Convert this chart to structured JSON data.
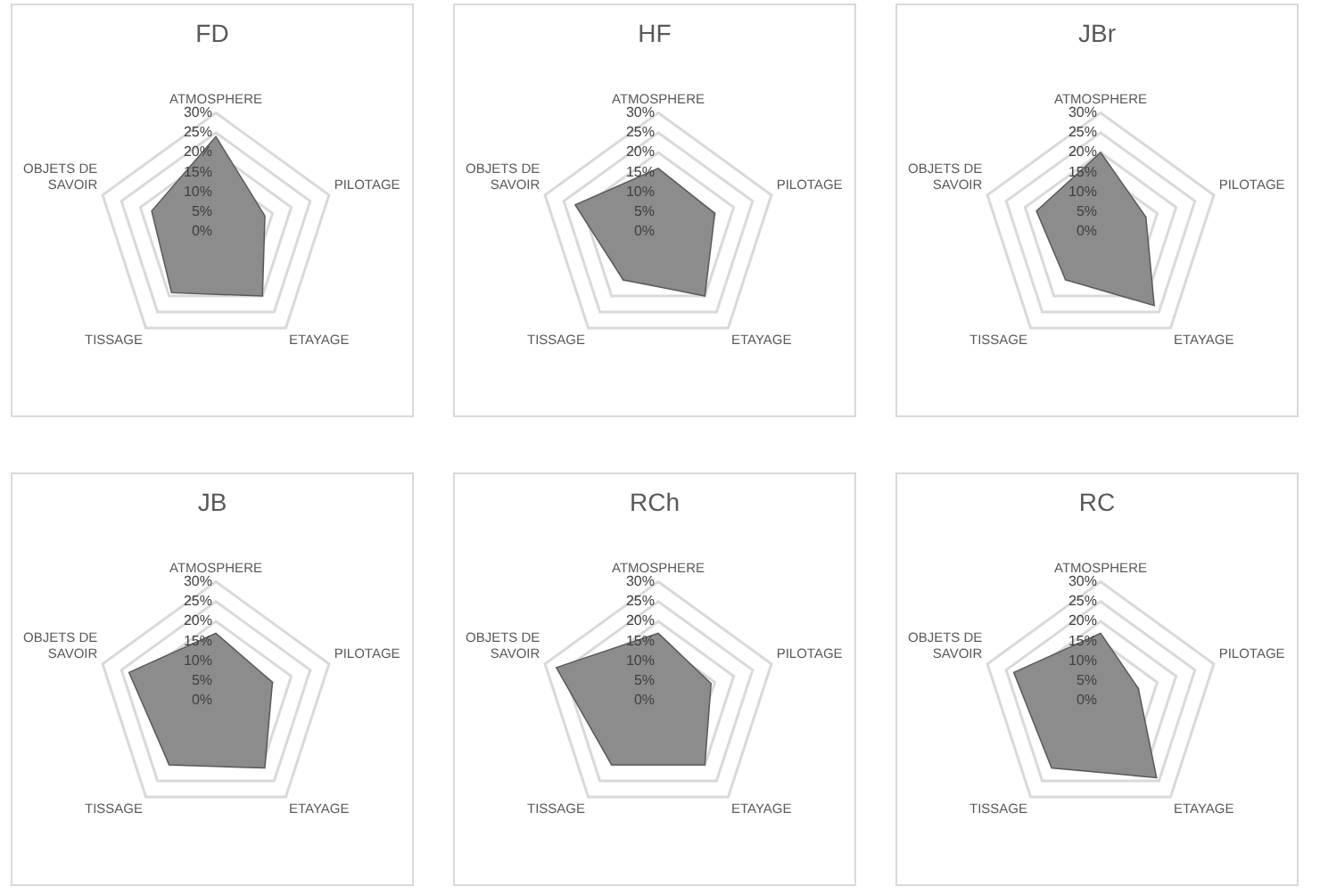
{
  "chart_data": [
    {
      "type": "radar",
      "title": "FD",
      "categories": [
        "ATMOSPHERE",
        "PILOTAGE",
        "ETAYAGE",
        "TISSAGE",
        "OBJETS DE SAVOIR"
      ],
      "series": [
        {
          "color": "#8c8c8c",
          "values": [
            24,
            13,
            20,
            19,
            17
          ]
        }
      ],
      "ylim": [
        0,
        30
      ],
      "yticks": [
        {
          "value": 0,
          "label": "0%"
        },
        {
          "value": 5,
          "label": "5%"
        },
        {
          "value": 10,
          "label": "10%"
        },
        {
          "value": 15,
          "label": "15%"
        },
        {
          "value": 20,
          "label": "20%"
        },
        {
          "value": 25,
          "label": "25%"
        },
        {
          "value": 30,
          "label": "30%"
        }
      ],
      "grid": true,
      "legend": false
    },
    {
      "type": "radar",
      "title": "HF",
      "categories": [
        "ATMOSPHERE",
        "PILOTAGE",
        "ETAYAGE",
        "TISSAGE",
        "OBJETS DE SAVOIR"
      ],
      "series": [
        {
          "color": "#8c8c8c",
          "values": [
            16,
            15,
            20,
            15,
            22
          ]
        }
      ],
      "ylim": [
        0,
        30
      ],
      "yticks": [
        {
          "value": 0,
          "label": "0%"
        },
        {
          "value": 5,
          "label": "5%"
        },
        {
          "value": 10,
          "label": "10%"
        },
        {
          "value": 15,
          "label": "15%"
        },
        {
          "value": 20,
          "label": "20%"
        },
        {
          "value": 25,
          "label": "25%"
        },
        {
          "value": 30,
          "label": "30%"
        }
      ],
      "grid": true,
      "legend": false
    },
    {
      "type": "radar",
      "title": "JBr",
      "categories": [
        "ATMOSPHERE",
        "PILOTAGE",
        "ETAYAGE",
        "TISSAGE",
        "OBJETS DE SAVOIR"
      ],
      "series": [
        {
          "color": "#8c8c8c",
          "values": [
            20,
            12,
            23,
            15,
            17
          ]
        }
      ],
      "ylim": [
        0,
        30
      ],
      "yticks": [
        {
          "value": 0,
          "label": "0%"
        },
        {
          "value": 5,
          "label": "5%"
        },
        {
          "value": 10,
          "label": "10%"
        },
        {
          "value": 15,
          "label": "15%"
        },
        {
          "value": 20,
          "label": "20%"
        },
        {
          "value": 25,
          "label": "25%"
        },
        {
          "value": 30,
          "label": "30%"
        }
      ],
      "grid": true,
      "legend": false
    },
    {
      "type": "radar",
      "title": "JB",
      "categories": [
        "ATMOSPHERE",
        "PILOTAGE",
        "ETAYAGE",
        "TISSAGE",
        "OBJETS DE SAVOIR"
      ],
      "series": [
        {
          "color": "#8c8c8c",
          "values": [
            17,
            15,
            21,
            20,
            23
          ]
        }
      ],
      "ylim": [
        0,
        30
      ],
      "yticks": [
        {
          "value": 0,
          "label": "0%"
        },
        {
          "value": 5,
          "label": "5%"
        },
        {
          "value": 10,
          "label": "10%"
        },
        {
          "value": 15,
          "label": "15%"
        },
        {
          "value": 20,
          "label": "20%"
        },
        {
          "value": 25,
          "label": "25%"
        },
        {
          "value": 30,
          "label": "30%"
        }
      ],
      "grid": true,
      "legend": false
    },
    {
      "type": "radar",
      "title": "RCh",
      "categories": [
        "ATMOSPHERE",
        "PILOTAGE",
        "ETAYAGE",
        "TISSAGE",
        "OBJETS DE SAVOIR"
      ],
      "series": [
        {
          "color": "#8c8c8c",
          "values": [
            17,
            14,
            20,
            20,
            27
          ]
        }
      ],
      "ylim": [
        0,
        30
      ],
      "yticks": [
        {
          "value": 0,
          "label": "0%"
        },
        {
          "value": 5,
          "label": "5%"
        },
        {
          "value": 10,
          "label": "10%"
        },
        {
          "value": 15,
          "label": "15%"
        },
        {
          "value": 20,
          "label": "20%"
        },
        {
          "value": 25,
          "label": "25%"
        },
        {
          "value": 30,
          "label": "30%"
        }
      ],
      "grid": true,
      "legend": false
    },
    {
      "type": "radar",
      "title": "RC",
      "categories": [
        "ATMOSPHERE",
        "PILOTAGE",
        "ETAYAGE",
        "TISSAGE",
        "OBJETS DE SAVOIR"
      ],
      "series": [
        {
          "color": "#8c8c8c",
          "values": [
            17,
            10,
            24,
            21,
            23
          ]
        }
      ],
      "ylim": [
        0,
        30
      ],
      "yticks": [
        {
          "value": 0,
          "label": "0%"
        },
        {
          "value": 5,
          "label": "5%"
        },
        {
          "value": 10,
          "label": "10%"
        },
        {
          "value": 15,
          "label": "15%"
        },
        {
          "value": 20,
          "label": "20%"
        },
        {
          "value": 25,
          "label": "25%"
        },
        {
          "value": 30,
          "label": "30%"
        }
      ],
      "grid": true,
      "legend": false
    }
  ]
}
